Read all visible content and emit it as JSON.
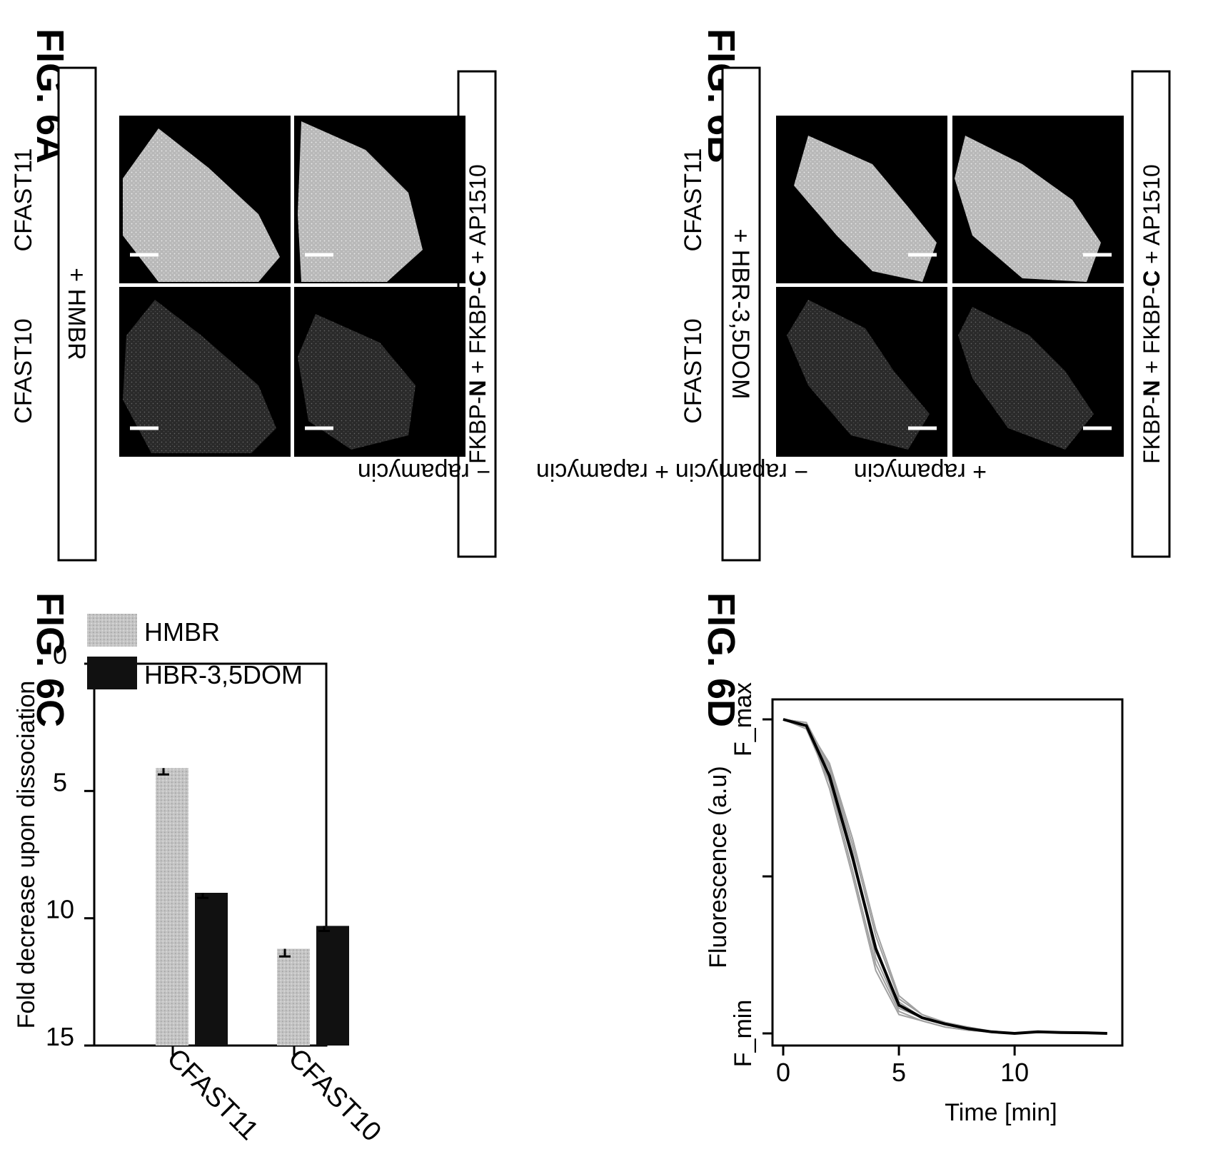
{
  "figures": {
    "fig6a": {
      "label": "FIG. 6A",
      "condition": "+ HMBR",
      "construct": "FKBP-N + FKBP-C + AP1510",
      "construct_parts": [
        "FKBP-",
        "N",
        " + FKBP-",
        "C",
        " + AP1510"
      ],
      "rows": [
        "CFAST11",
        "CFAST10"
      ],
      "columns": [
        "− rapamycin",
        "+ rapamycin"
      ]
    },
    "fig6b": {
      "label": "FIG. 6B",
      "condition": "+ HBR-3,5DOM",
      "construct": "FKBP-N + FKBP-C + AP1510",
      "construct_parts": [
        "FKBP-",
        "N",
        " + FKBP-",
        "C",
        " + AP1510"
      ],
      "rows": [
        "CFAST11",
        "CFAST10"
      ],
      "columns": [
        "− rapamycin",
        "+ rapamycin"
      ]
    },
    "fig6c": {
      "label": "FIG. 6C"
    },
    "fig6d": {
      "label": "FIG. 6D"
    }
  },
  "chart_data": [
    {
      "type": "bar",
      "panel": "FIG. 6C",
      "ylabel": "Fold decrease upon dissociation",
      "xlabel": "",
      "categories": [
        "CFAST11",
        "CFAST10"
      ],
      "ylim": [
        0,
        15
      ],
      "yticks": [
        0,
        5,
        10,
        15
      ],
      "series": [
        {
          "name": "HMBR",
          "values": [
            4.1,
            11.2
          ],
          "errors": [
            0.25,
            0.3
          ],
          "color": "#bdbdbd"
        },
        {
          "name": "HBR-3,5DOM",
          "values": [
            9.0,
            10.3
          ],
          "errors": [
            0.2,
            0.2
          ],
          "color": "#111111"
        }
      ],
      "legend_position": "top-left",
      "grid": false
    },
    {
      "type": "line",
      "panel": "FIG. 6D",
      "ylabel": "Fluorescence (a.u)",
      "xlabel": "Time [min]",
      "xlim": [
        0,
        14.5
      ],
      "xticks": [
        0,
        5,
        10
      ],
      "yticks_labels": [
        "F_max",
        "F_min"
      ],
      "ylim_norm": [
        0,
        1
      ],
      "grid": false,
      "mean_series": {
        "color": "#000000",
        "x": [
          0,
          1,
          2,
          3,
          4,
          5,
          6,
          7,
          8,
          9,
          10,
          11,
          12,
          13,
          14
        ],
        "y": [
          1.0,
          0.98,
          0.82,
          0.56,
          0.27,
          0.09,
          0.05,
          0.03,
          0.015,
          0.005,
          0.0,
          0.005,
          0.003,
          0.002,
          0.0
        ]
      },
      "replicates": {
        "color": "#a0a0a0",
        "x": [
          0,
          1,
          2,
          3,
          4,
          5,
          6,
          7,
          8,
          9,
          10,
          11,
          12,
          13,
          14
        ],
        "series": [
          [
            1.0,
            0.99,
            0.85,
            0.6,
            0.31,
            0.11,
            0.06,
            0.03,
            0.02,
            0.005,
            0.0,
            0.004,
            0.003,
            0.002,
            0.0
          ],
          [
            1.0,
            0.97,
            0.8,
            0.52,
            0.22,
            0.07,
            0.04,
            0.02,
            0.01,
            0.004,
            0.0,
            0.006,
            0.004,
            0.003,
            0.001
          ],
          [
            1.0,
            0.98,
            0.84,
            0.58,
            0.24,
            0.08,
            0.05,
            0.03,
            0.015,
            0.006,
            0.002,
            0.005,
            0.003,
            0.002,
            0.0
          ],
          [
            1.0,
            0.99,
            0.78,
            0.5,
            0.2,
            0.06,
            0.04,
            0.02,
            0.01,
            0.005,
            0.0,
            0.003,
            0.002,
            0.001,
            0.0
          ],
          [
            1.0,
            0.98,
            0.86,
            0.62,
            0.33,
            0.12,
            0.06,
            0.035,
            0.02,
            0.007,
            0.001,
            0.004,
            0.003,
            0.002,
            0.0
          ],
          [
            1.0,
            0.97,
            0.81,
            0.55,
            0.26,
            0.1,
            0.05,
            0.03,
            0.015,
            0.006,
            0.001,
            0.005,
            0.004,
            0.002,
            0.001
          ]
        ]
      }
    }
  ]
}
